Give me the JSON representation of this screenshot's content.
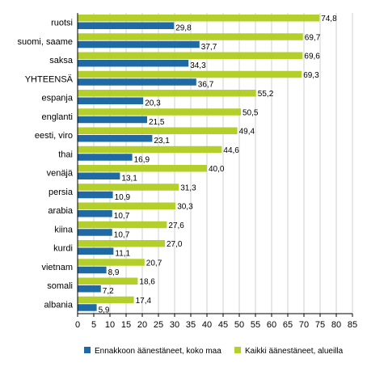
{
  "chart_data": {
    "type": "bar",
    "orientation": "horizontal",
    "title": "",
    "xlabel": "",
    "ylabel": "",
    "categories": [
      "ruotsi",
      "suomi, saame",
      "saksa",
      "YHTEENSÄ",
      "espanja",
      "englanti",
      "eesti, viro",
      "thai",
      "venäjä",
      "persia",
      "arabia",
      "kiina",
      "kurdi",
      "vietnam",
      "somali",
      "albania"
    ],
    "series": [
      {
        "name": "Kaikki äänestäneet, alueilla",
        "color": "#b5cf2a",
        "values": [
          74.8,
          69.7,
          69.6,
          69.3,
          55.2,
          50.5,
          49.4,
          44.6,
          40.0,
          31.3,
          30.3,
          27.6,
          27.0,
          20.7,
          18.6,
          17.4
        ],
        "labels": [
          "74,8",
          "69,7",
          "69,6",
          "69,3",
          "55,2",
          "50,5",
          "49,4",
          "44,6",
          "40,0",
          "31,3",
          "30,3",
          "27,6",
          "27,0",
          "20,7",
          "18,6",
          "17,4"
        ]
      },
      {
        "name": "Ennakkoon äänestäneet, koko maa",
        "color": "#1f6aa5",
        "values": [
          29.8,
          37.7,
          34.3,
          36.7,
          20.3,
          21.5,
          23.1,
          16.9,
          13.1,
          10.9,
          10.7,
          10.7,
          11.1,
          8.9,
          7.2,
          5.9
        ],
        "labels": [
          "29,8",
          "37,7",
          "34,3",
          "36,7",
          "20,3",
          "21,5",
          "23,1",
          "16,9",
          "13,1",
          "10,9",
          "10,7",
          "10,7",
          "11,1",
          "8,9",
          "7,2",
          "5,9"
        ]
      }
    ],
    "xlim": [
      0,
      85
    ],
    "xticks": [
      0,
      5,
      10,
      15,
      20,
      25,
      30,
      35,
      40,
      45,
      50,
      55,
      60,
      65,
      70,
      75,
      80,
      85
    ],
    "grid": "vertical",
    "legend": {
      "position": "bottom",
      "order": [
        "Ennakkoon äänestäneet, koko maa",
        "Kaikki äänestäneet, alueilla"
      ]
    }
  }
}
